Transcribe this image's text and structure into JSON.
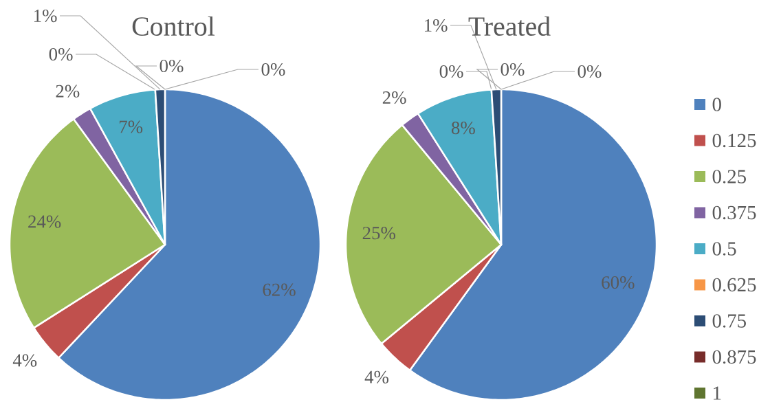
{
  "chart_data": {
    "type": "pie",
    "legend": "right",
    "categories": [
      "0",
      "0.125",
      "0.25",
      "0.375",
      "0.5",
      "0.625",
      "0.75",
      "0.875",
      "1"
    ],
    "colors": [
      "#4f81bd",
      "#c0504d",
      "#9bbb59",
      "#8064a2",
      "#4bacc6",
      "#f79646",
      "#2c4d75",
      "#772c2a",
      "#5f7530"
    ],
    "series": [
      {
        "name": "Control",
        "values": [
          62,
          4,
          24,
          2,
          7,
          0,
          1,
          0,
          0
        ],
        "value_labels": [
          "62%",
          "4%",
          "24%",
          "2%",
          "7%",
          "0%",
          "1%",
          "0%",
          "0%"
        ]
      },
      {
        "name": "Treated",
        "values": [
          60,
          4,
          25,
          2,
          8,
          0,
          1,
          0,
          0
        ],
        "value_labels": [
          "60%",
          "4%",
          "25%",
          "2%",
          "8%",
          "0%",
          "1%",
          "0%",
          "0%"
        ]
      }
    ]
  }
}
